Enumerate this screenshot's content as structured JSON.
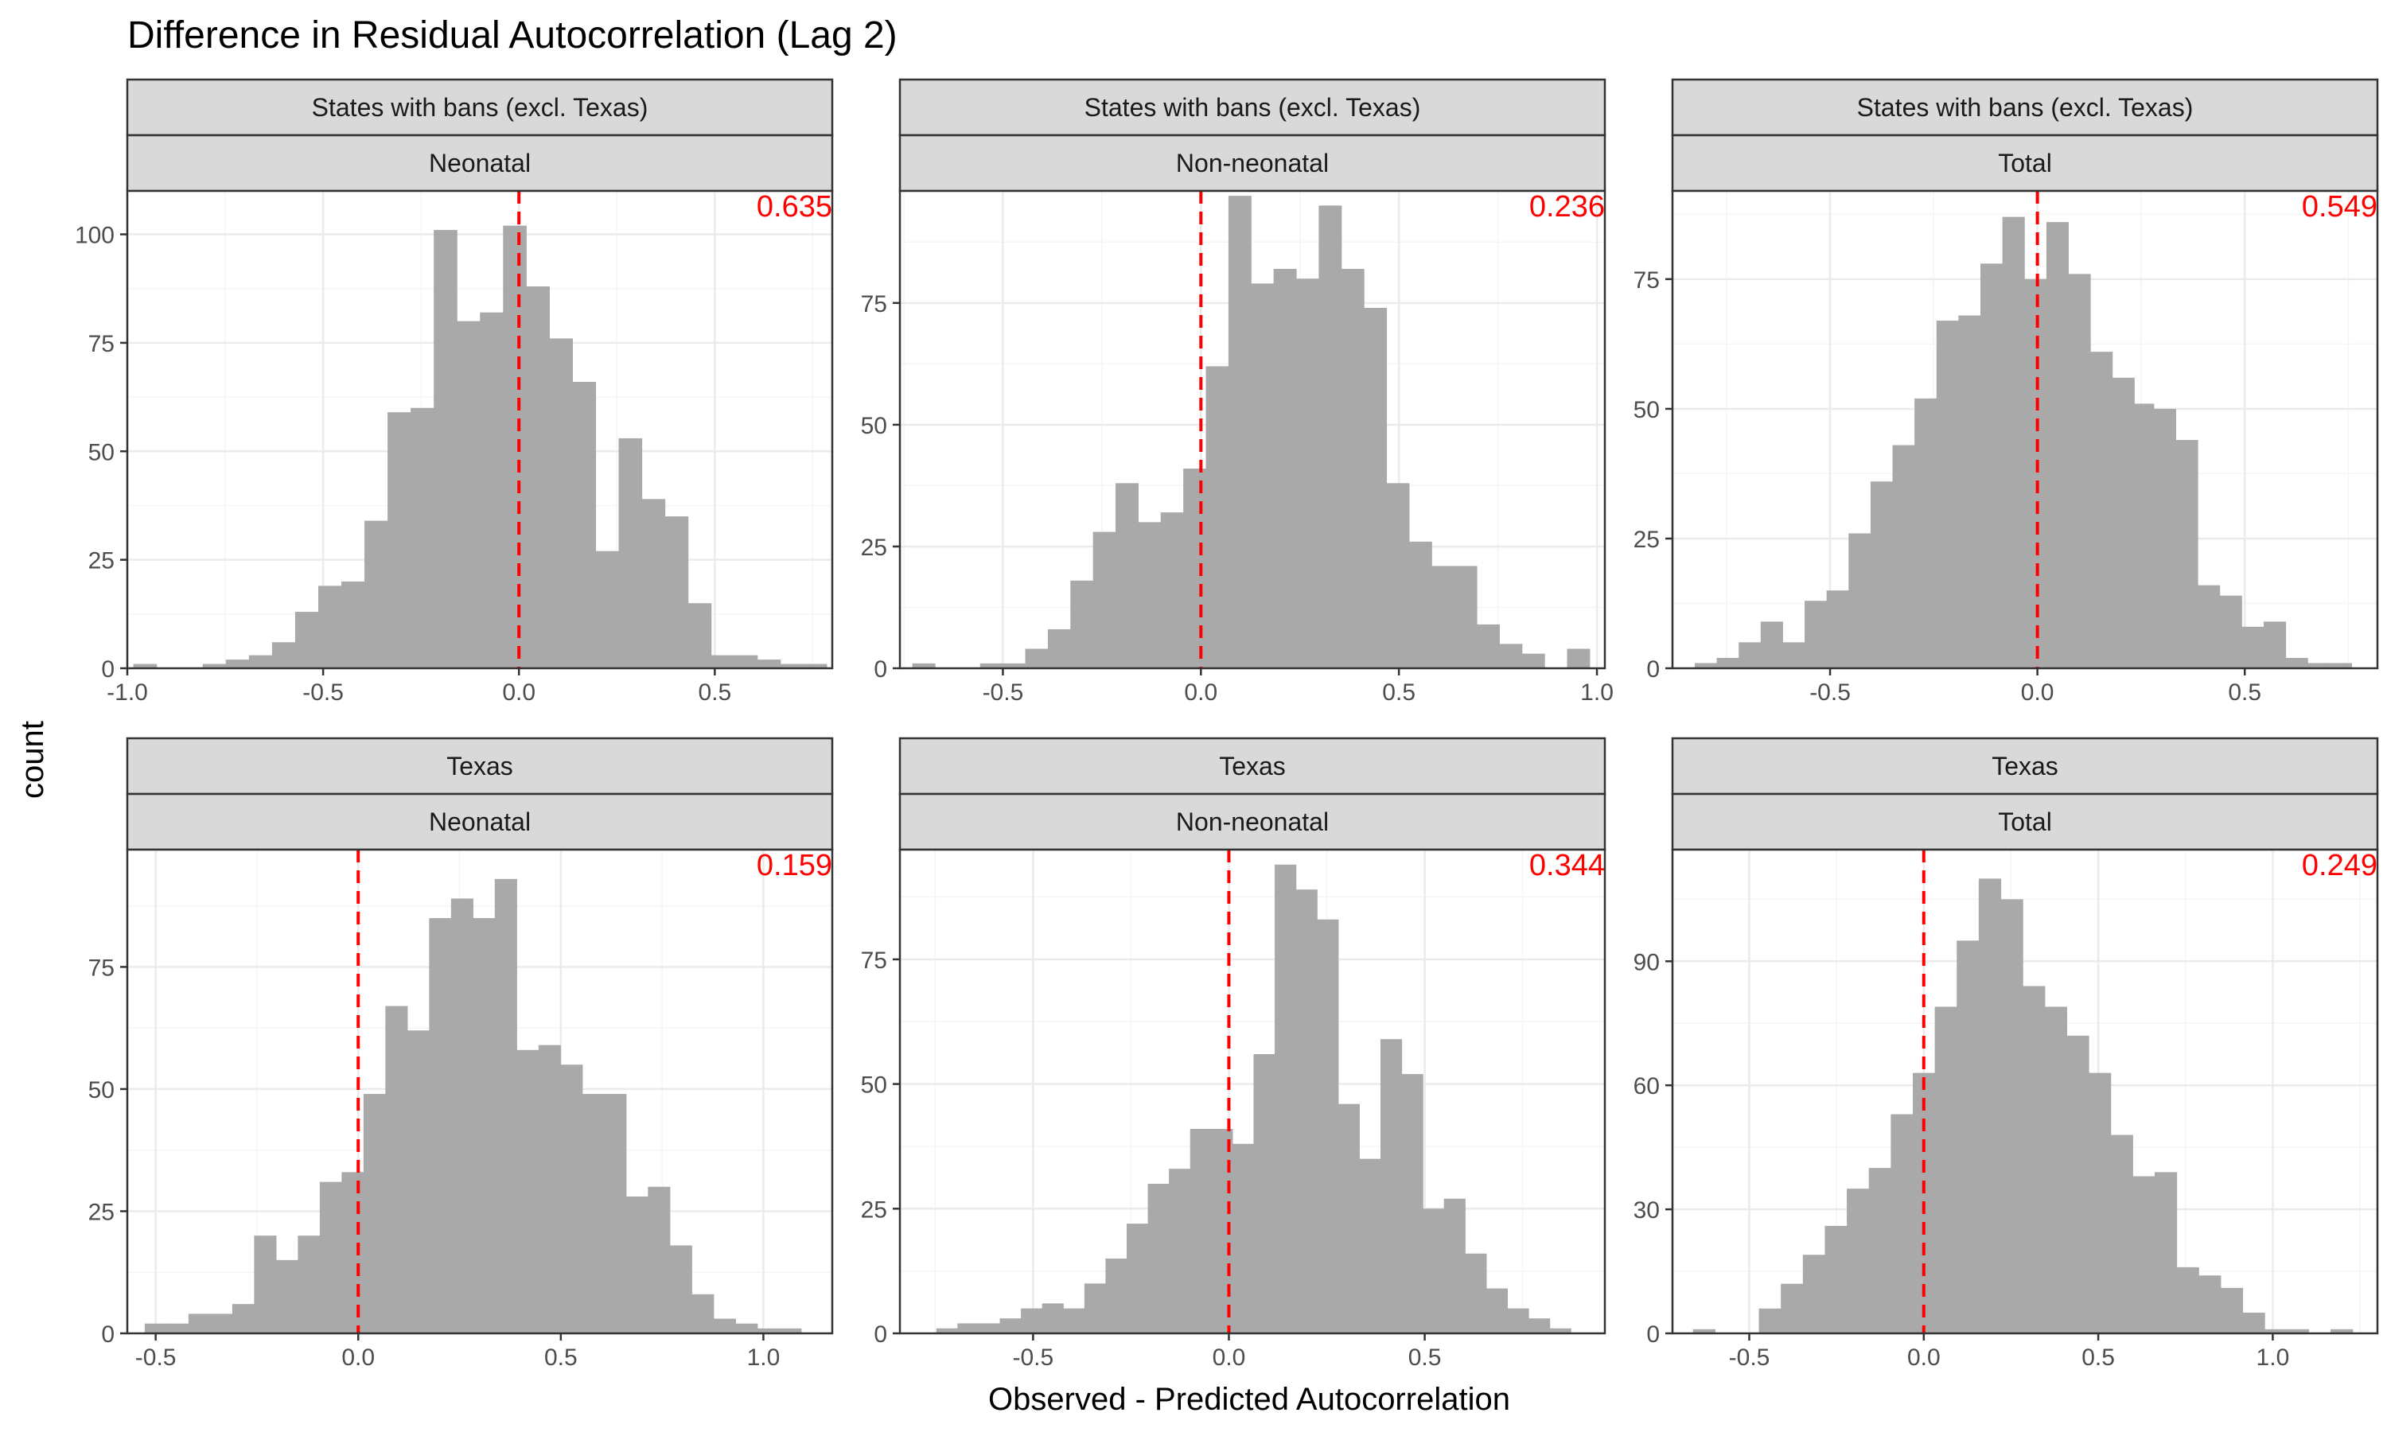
{
  "figure": {
    "title": "Difference in Residual Autocorrelation (Lag 2)",
    "xlabel": "Observed - Predicted Autocorrelation",
    "ylabel": "count"
  },
  "colors": {
    "bar_fill": "#a9a9a9",
    "reference_line": "#ff0000",
    "annotation": "#ff0000",
    "strip_fill": "#d9d9d9",
    "strip_border": "#333333",
    "panel_border": "#333333",
    "grid_major": "#ebebeb",
    "grid_minor": "#f5f5f5"
  },
  "chart_data": [
    {
      "type": "bar",
      "subtype": "histogram",
      "strip_top": "States with bans (excl. Texas)",
      "strip_bottom": "Neonatal",
      "annotation": "0.635",
      "xlim": [
        -1.0,
        0.8
      ],
      "ylim": [
        0,
        110
      ],
      "x_ticks": [
        -1.0,
        -0.5,
        0.0,
        0.5
      ],
      "x_tick_labels": [
        "-1.0",
        "-0.5",
        "0.0",
        "0.5"
      ],
      "y_ticks": [
        0,
        25,
        50,
        75,
        100
      ],
      "y_tick_labels": [
        "0",
        "25",
        "50",
        "75",
        "100"
      ],
      "vline": 0,
      "bins": [
        -0.955,
        -0.896,
        -0.837,
        -0.778,
        -0.719,
        -0.66,
        -0.601,
        -0.542,
        -0.483,
        -0.424,
        -0.365,
        -0.306,
        -0.247,
        -0.188,
        -0.129,
        -0.07,
        -0.011,
        0.048,
        0.107,
        0.166,
        0.225,
        0.284,
        0.343,
        0.402,
        0.461,
        0.52,
        0.579,
        0.638,
        0.697,
        0.756
      ],
      "counts": [
        1,
        0,
        0,
        1,
        2,
        3,
        6,
        13,
        19,
        20,
        34,
        59,
        60,
        101,
        80,
        82,
        102,
        88,
        76,
        66,
        27,
        53,
        39,
        35,
        15,
        3,
        3,
        2,
        1,
        1
      ]
    },
    {
      "type": "bar",
      "subtype": "histogram",
      "strip_top": "States with bans (excl. Texas)",
      "strip_bottom": "Non-neonatal",
      "annotation": "0.236",
      "xlim": [
        -0.76,
        1.02
      ],
      "ylim": [
        0,
        98
      ],
      "x_ticks": [
        -0.5,
        0.0,
        0.5,
        1.0
      ],
      "x_tick_labels": [
        "-0.5",
        "0.0",
        "0.5",
        "1.0"
      ],
      "y_ticks": [
        0,
        25,
        50,
        75
      ],
      "y_tick_labels": [
        "0",
        "25",
        "50",
        "75"
      ],
      "vline": 0,
      "bins": [
        -0.7,
        -0.643,
        -0.586,
        -0.529,
        -0.472,
        -0.415,
        -0.358,
        -0.301,
        -0.244,
        -0.187,
        -0.13,
        -0.073,
        -0.016,
        0.041,
        0.098,
        0.155,
        0.212,
        0.269,
        0.326,
        0.383,
        0.44,
        0.497,
        0.554,
        0.611,
        0.668,
        0.725,
        0.782,
        0.839,
        0.896,
        0.953
      ],
      "counts": [
        1,
        0,
        0,
        1,
        1,
        4,
        8,
        18,
        28,
        38,
        30,
        32,
        41,
        62,
        97,
        79,
        82,
        80,
        95,
        82,
        74,
        38,
        26,
        21,
        21,
        9,
        5,
        3,
        0,
        4
      ]
    },
    {
      "type": "bar",
      "subtype": "histogram",
      "strip_top": "States with bans (excl. Texas)",
      "strip_bottom": "Total",
      "annotation": "0.549",
      "xlim": [
        -0.88,
        0.82
      ],
      "ylim": [
        0,
        92
      ],
      "x_ticks": [
        -0.5,
        0.0,
        0.5
      ],
      "x_tick_labels": [
        "-0.5",
        "0.0",
        "0.5"
      ],
      "y_ticks": [
        0,
        25,
        50,
        75
      ],
      "y_tick_labels": [
        "0",
        "25",
        "50",
        "75"
      ],
      "vline": 0,
      "bins": [
        -0.8,
        -0.747,
        -0.694,
        -0.641,
        -0.588,
        -0.535,
        -0.482,
        -0.429,
        -0.376,
        -0.323,
        -0.27,
        -0.217,
        -0.164,
        -0.111,
        -0.058,
        -0.005,
        0.048,
        0.101,
        0.154,
        0.207,
        0.254,
        0.307,
        0.36,
        0.413,
        0.466,
        0.519,
        0.572,
        0.625,
        0.678,
        0.731
      ],
      "counts": [
        1,
        2,
        5,
        9,
        5,
        13,
        15,
        26,
        36,
        43,
        52,
        67,
        68,
        78,
        87,
        75,
        86,
        76,
        61,
        56,
        51,
        50,
        44,
        16,
        14,
        8,
        9,
        2,
        1,
        1
      ]
    },
    {
      "type": "bar",
      "subtype": "histogram",
      "strip_top": "Texas",
      "strip_bottom": "Neonatal",
      "annotation": "0.159",
      "xlim": [
        -0.57,
        1.17
      ],
      "ylim": [
        0,
        99
      ],
      "x_ticks": [
        -0.5,
        0.0,
        0.5,
        1.0
      ],
      "x_tick_labels": [
        "-0.5",
        "0.0",
        "0.5",
        "1.0"
      ],
      "y_ticks": [
        0,
        25,
        50,
        75
      ],
      "y_tick_labels": [
        "0",
        "25",
        "50",
        "75"
      ],
      "vline": 0,
      "bins": [
        -0.5,
        -0.446,
        -0.392,
        -0.338,
        -0.284,
        -0.23,
        -0.176,
        -0.122,
        -0.068,
        -0.014,
        0.04,
        0.094,
        0.148,
        0.202,
        0.256,
        0.31,
        0.364,
        0.418,
        0.472,
        0.526,
        0.58,
        0.634,
        0.688,
        0.742,
        0.796,
        0.85,
        0.904,
        0.958,
        1.012,
        1.066
      ],
      "counts": [
        2,
        2,
        4,
        4,
        6,
        20,
        15,
        20,
        31,
        33,
        49,
        67,
        62,
        85,
        89,
        85,
        93,
        58,
        59,
        55,
        49,
        49,
        28,
        30,
        18,
        8,
        3,
        2,
        1,
        1
      ]
    },
    {
      "type": "bar",
      "subtype": "histogram",
      "strip_top": "Texas",
      "strip_bottom": "Non-neonatal",
      "annotation": "0.344",
      "xlim": [
        -0.84,
        0.96
      ],
      "ylim": [
        0,
        97
      ],
      "x_ticks": [
        -0.5,
        0.0,
        0.5
      ],
      "x_tick_labels": [
        "-0.5",
        "0.0",
        "0.5"
      ],
      "y_ticks": [
        0,
        25,
        50,
        75
      ],
      "y_tick_labels": [
        "0",
        "25",
        "50",
        "75"
      ],
      "vline": 0,
      "bins": [
        -0.72,
        -0.666,
        -0.612,
        -0.558,
        -0.504,
        -0.45,
        -0.396,
        -0.342,
        -0.288,
        -0.234,
        -0.18,
        -0.126,
        -0.072,
        -0.018,
        0.036,
        0.09,
        0.144,
        0.198,
        0.252,
        0.306,
        0.36,
        0.414,
        0.468,
        0.522,
        0.576,
        0.63,
        0.684,
        0.738,
        0.792,
        0.846
      ],
      "counts": [
        1,
        2,
        2,
        3,
        5,
        6,
        5,
        10,
        15,
        22,
        30,
        33,
        41,
        41,
        38,
        56,
        94,
        89,
        83,
        46,
        35,
        59,
        52,
        25,
        27,
        16,
        9,
        5,
        3,
        1
      ]
    },
    {
      "type": "bar",
      "subtype": "histogram",
      "strip_top": "Texas",
      "strip_bottom": "Total",
      "annotation": "0.249",
      "xlim": [
        -0.72,
        1.3
      ],
      "ylim": [
        0,
        117
      ],
      "x_ticks": [
        -0.5,
        0.0,
        0.5,
        1.0
      ],
      "x_tick_labels": [
        "-0.5",
        "0.0",
        "0.5",
        "1.0"
      ],
      "y_ticks": [
        0,
        30,
        60,
        90
      ],
      "y_tick_labels": [
        "0",
        "30",
        "60",
        "90"
      ],
      "vline": 0,
      "bins": [
        -0.63,
        -0.567,
        -0.504,
        -0.441,
        -0.378,
        -0.315,
        -0.252,
        -0.189,
        -0.126,
        -0.063,
        0.0,
        0.063,
        0.126,
        0.189,
        0.252,
        0.315,
        0.378,
        0.441,
        0.504,
        0.567,
        0.63,
        0.693,
        0.756,
        0.819,
        0.882,
        0.945,
        1.008,
        1.071,
        1.134,
        1.197
      ],
      "counts": [
        1,
        0,
        0,
        6,
        12,
        19,
        26,
        35,
        40,
        53,
        63,
        79,
        95,
        110,
        105,
        84,
        79,
        72,
        63,
        48,
        38,
        39,
        16,
        14,
        11,
        5,
        1,
        1,
        0,
        1
      ]
    }
  ]
}
